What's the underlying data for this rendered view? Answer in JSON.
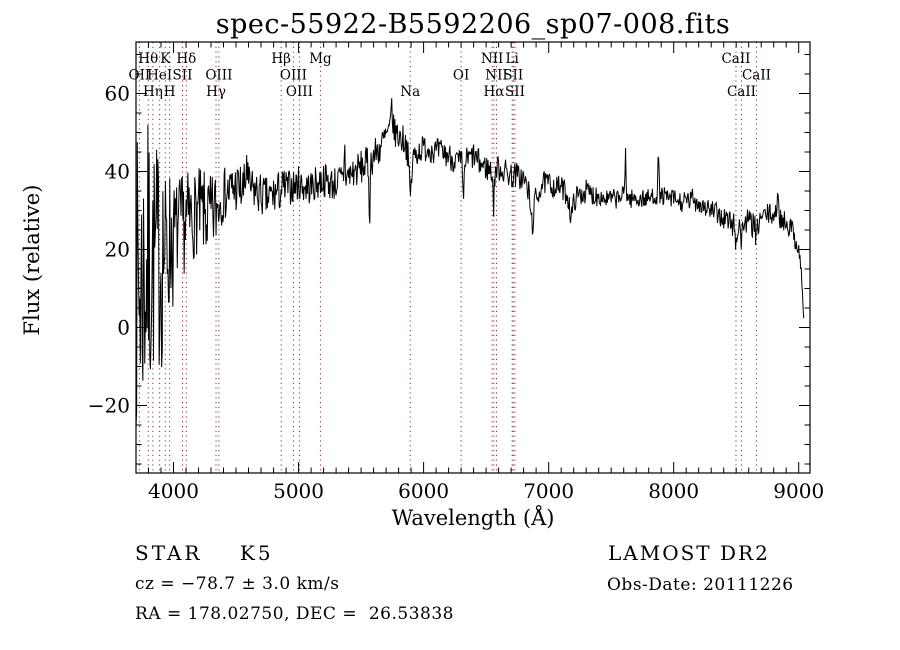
{
  "chart_data": {
    "type": "line",
    "title": "spec-55922-B5592206_sp07-008.fits",
    "xlabel": "Wavelength (Å)",
    "ylabel": "Flux (relative)",
    "xlim": [
      3700,
      9090
    ],
    "ylim": [
      -37.3,
      73.2
    ],
    "x_ticks": [
      4000,
      5000,
      6000,
      7000,
      8000,
      9000
    ],
    "x_minor_step": 100,
    "y_ticks": [
      -20,
      0,
      20,
      40,
      60
    ],
    "y_minor_step": 5,
    "grid": false,
    "legend": "none",
    "background_color": "#ffffff",
    "axis_color": "#000000",
    "line_color": "#000000",
    "spectral_line_color": "#8b3030",
    "spectral_lines": [
      {
        "wavelength": 3727,
        "label": "OII",
        "row": 2
      },
      {
        "wavelength": 3798,
        "label": "Hθ",
        "row": 1
      },
      {
        "wavelength": 3835,
        "label": "Hη",
        "row": 3
      },
      {
        "wavelength": 3889,
        "label": "HeI",
        "row": 2
      },
      {
        "wavelength": 3934,
        "label": "K",
        "row": 1
      },
      {
        "wavelength": 3969,
        "label": "H",
        "row": 3
      },
      {
        "wavelength": 4072,
        "label": "SII",
        "row": 2
      },
      {
        "wavelength": 4102,
        "label": "Hδ",
        "row": 1
      },
      {
        "wavelength": 4340,
        "label": "Hγ",
        "row": 3
      },
      {
        "wavelength": 4363,
        "label": "OIII",
        "row": 2
      },
      {
        "wavelength": 4861,
        "label": "Hβ",
        "row": 1
      },
      {
        "wavelength": 4959,
        "label": "OIII",
        "row": 2
      },
      {
        "wavelength": 5007,
        "label": "OIII",
        "row": 3
      },
      {
        "wavelength": 5175,
        "label": "Mg",
        "row": 1
      },
      {
        "wavelength": 5893,
        "label": "Na",
        "row": 3
      },
      {
        "wavelength": 6300,
        "label": "OI",
        "row": 2
      },
      {
        "wavelength": 6548,
        "label": "NII",
        "row": 1
      },
      {
        "wavelength": 6563,
        "label": "Hα",
        "row": 3
      },
      {
        "wavelength": 6583,
        "label": "NII",
        "row": 2
      },
      {
        "wavelength": 6708,
        "label": "Li",
        "row": 1
      },
      {
        "wavelength": 6717,
        "label": "SII",
        "row": 2
      },
      {
        "wavelength": 6731,
        "label": "SII",
        "row": 3
      },
      {
        "wavelength": 8498,
        "label": "CaII",
        "row": 1
      },
      {
        "wavelength": 8542,
        "label": "CaII",
        "row": 3
      },
      {
        "wavelength": 8662,
        "label": "CaII",
        "row": 2
      }
    ],
    "spectrum": {
      "start": 3700,
      "end": 9040,
      "step": 5,
      "seed": 7,
      "continuum": [
        [
          3700,
          12
        ],
        [
          3730,
          10
        ],
        [
          3760,
          13
        ],
        [
          3800,
          16
        ],
        [
          3840,
          17
        ],
        [
          3880,
          18
        ],
        [
          3920,
          19
        ],
        [
          3960,
          21
        ],
        [
          4000,
          24
        ],
        [
          4050,
          26
        ],
        [
          4100,
          27
        ],
        [
          4150,
          28
        ],
        [
          4200,
          30
        ],
        [
          4250,
          29
        ],
        [
          4300,
          28
        ],
        [
          4350,
          31
        ],
        [
          4400,
          34
        ],
        [
          4450,
          35
        ],
        [
          4500,
          36
        ],
        [
          4550,
          35
        ],
        [
          4600,
          36
        ],
        [
          4650,
          35
        ],
        [
          4700,
          34
        ],
        [
          4750,
          33
        ],
        [
          4800,
          34
        ],
        [
          4850,
          35
        ],
        [
          4900,
          36
        ],
        [
          4950,
          36
        ],
        [
          5000,
          37
        ],
        [
          5050,
          36
        ],
        [
          5100,
          36
        ],
        [
          5150,
          37
        ],
        [
          5200,
          38
        ],
        [
          5250,
          37
        ],
        [
          5300,
          37
        ],
        [
          5350,
          38
        ],
        [
          5400,
          39
        ],
        [
          5450,
          40
        ],
        [
          5500,
          41
        ],
        [
          5550,
          42
        ],
        [
          5600,
          44
        ],
        [
          5650,
          46
        ],
        [
          5700,
          49
        ],
        [
          5750,
          51
        ],
        [
          5800,
          49
        ],
        [
          5850,
          48
        ],
        [
          5900,
          43
        ],
        [
          5950,
          45
        ],
        [
          6000,
          46
        ],
        [
          6050,
          46
        ],
        [
          6100,
          45
        ],
        [
          6150,
          45
        ],
        [
          6200,
          44
        ],
        [
          6250,
          43
        ],
        [
          6300,
          42
        ],
        [
          6350,
          43
        ],
        [
          6400,
          44
        ],
        [
          6450,
          42
        ],
        [
          6500,
          41
        ],
        [
          6550,
          40
        ],
        [
          6600,
          41
        ],
        [
          6650,
          40
        ],
        [
          6700,
          39
        ],
        [
          6750,
          39
        ],
        [
          6800,
          38
        ],
        [
          6850,
          34
        ],
        [
          6900,
          33
        ],
        [
          6950,
          37
        ],
        [
          7000,
          37
        ],
        [
          7050,
          36
        ],
        [
          7100,
          36
        ],
        [
          7150,
          34
        ],
        [
          7200,
          33
        ],
        [
          7250,
          34
        ],
        [
          7300,
          35
        ],
        [
          7350,
          34
        ],
        [
          7400,
          34
        ],
        [
          7450,
          33
        ],
        [
          7500,
          33
        ],
        [
          7550,
          33
        ],
        [
          7600,
          34
        ],
        [
          7650,
          33
        ],
        [
          7700,
          33
        ],
        [
          7750,
          33
        ],
        [
          7800,
          33
        ],
        [
          7850,
          34
        ],
        [
          7900,
          34
        ],
        [
          7950,
          33
        ],
        [
          8000,
          33
        ],
        [
          8050,
          32
        ],
        [
          8100,
          32
        ],
        [
          8150,
          33
        ],
        [
          8200,
          32
        ],
        [
          8250,
          31
        ],
        [
          8300,
          30
        ],
        [
          8350,
          29
        ],
        [
          8400,
          28
        ],
        [
          8450,
          27
        ],
        [
          8500,
          26
        ],
        [
          8550,
          27
        ],
        [
          8600,
          27
        ],
        [
          8650,
          26
        ],
        [
          8700,
          28
        ],
        [
          8750,
          29
        ],
        [
          8800,
          29
        ],
        [
          8850,
          28
        ],
        [
          8900,
          27
        ],
        [
          8950,
          25
        ],
        [
          9000,
          20
        ],
        [
          9020,
          15
        ],
        [
          9030,
          8
        ],
        [
          9040,
          1
        ]
      ],
      "noise_segments": [
        [
          3700,
          3820,
          38
        ],
        [
          3820,
          3920,
          30
        ],
        [
          3920,
          4000,
          20
        ],
        [
          4000,
          4150,
          13
        ],
        [
          4150,
          4350,
          11
        ],
        [
          4350,
          4600,
          7
        ],
        [
          4600,
          4900,
          5.5
        ],
        [
          4900,
          5300,
          4.5
        ],
        [
          5300,
          5700,
          4.5
        ],
        [
          5700,
          5950,
          4
        ],
        [
          5950,
          6400,
          3.5
        ],
        [
          6400,
          6900,
          3.5
        ],
        [
          6900,
          7400,
          3
        ],
        [
          7400,
          8000,
          2.5
        ],
        [
          8000,
          8400,
          2.8
        ],
        [
          8400,
          8750,
          3.5
        ],
        [
          8750,
          9000,
          2.8
        ],
        [
          9000,
          9045,
          2
        ]
      ],
      "features": [
        [
          4585,
          8,
          5
        ],
        [
          5368,
          8,
          4
        ],
        [
          5568,
          -13,
          5
        ],
        [
          5745,
          7,
          5
        ],
        [
          5893,
          -9,
          10
        ],
        [
          6318,
          -13,
          4
        ],
        [
          6560,
          -9,
          5
        ],
        [
          6868,
          -7,
          12
        ],
        [
          7180,
          -5,
          12
        ],
        [
          7615,
          12,
          4
        ],
        [
          7878,
          10,
          4
        ],
        [
          8498,
          -5,
          6
        ],
        [
          8542,
          -5,
          6
        ],
        [
          8662,
          -5,
          6
        ],
        [
          8835,
          8,
          4
        ]
      ]
    }
  },
  "footer": {
    "class_line": "STAR    K5",
    "survey": "LAMOST DR2",
    "cz_line": "cz = −78.7 ± 3.0 km/s",
    "obs_date": "Obs-Date: 20111226",
    "ra_dec": "RA = 178.02750, DEC =  26.53838"
  }
}
